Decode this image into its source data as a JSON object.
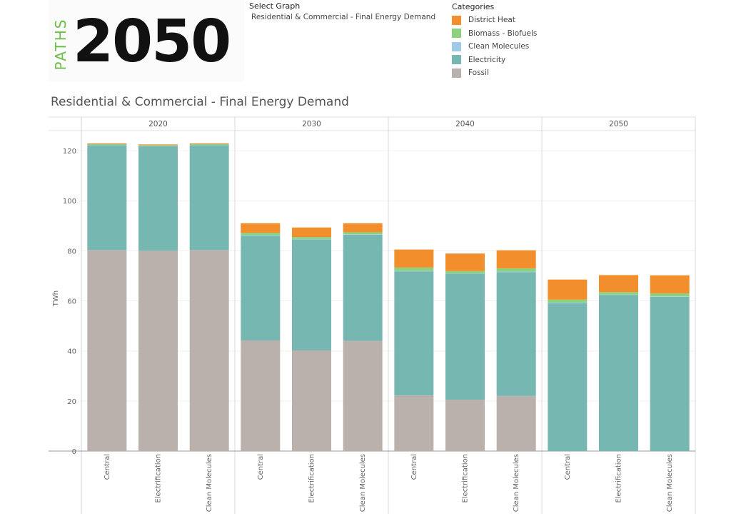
{
  "logo": {
    "small_text": "PATHS",
    "big_text": "2050"
  },
  "select_graph": {
    "label": "Select Graph",
    "value": "Residential & Commercial - Final Energy Demand"
  },
  "legend": {
    "title": "Categories",
    "items": [
      {
        "name": "District Heat",
        "color": "#f28e2b"
      },
      {
        "name": "Biomass - Biofuels",
        "color": "#8cd17d"
      },
      {
        "name": "Clean Molecules",
        "color": "#a0cbe8"
      },
      {
        "name": "Electricity",
        "color": "#76b7b2"
      },
      {
        "name": "Fossil",
        "color": "#bab0ac"
      }
    ]
  },
  "chart_data": {
    "type": "bar",
    "stacked": true,
    "title": "Residential & Commercial - Final Energy Demand",
    "ylabel": "TWh",
    "ylim": [
      0,
      128
    ],
    "yticks": [
      0,
      20,
      40,
      60,
      80,
      100,
      120
    ],
    "panels": [
      "2020",
      "2030",
      "2040",
      "2050"
    ],
    "categories": [
      "Central",
      "Electrification",
      "Clean Molecules"
    ],
    "series_order": [
      "Fossil",
      "Electricity",
      "Clean Molecules",
      "Biomass - Biofuels",
      "District Heat"
    ],
    "values": {
      "2020": {
        "Central": {
          "Fossil": 80.3,
          "Electricity": 41.9,
          "Clean Molecules": 0.1,
          "Biomass - Biofuels": 0.3,
          "District Heat": 0.3
        },
        "Electrification": {
          "Fossil": 80.0,
          "Electricity": 41.8,
          "Clean Molecules": 0.1,
          "Biomass - Biofuels": 0.3,
          "District Heat": 0.3
        },
        "Clean Molecules": {
          "Fossil": 80.3,
          "Electricity": 41.9,
          "Clean Molecules": 0.1,
          "Biomass - Biofuels": 0.3,
          "District Heat": 0.3
        }
      },
      "2030": {
        "Central": {
          "Fossil": 44.2,
          "Electricity": 41.8,
          "Clean Molecules": 0.2,
          "Biomass - Biofuels": 1.0,
          "District Heat": 3.8
        },
        "Electrification": {
          "Fossil": 40.2,
          "Electricity": 44.3,
          "Clean Molecules": 0.2,
          "Biomass - Biofuels": 0.8,
          "District Heat": 3.8
        },
        "Clean Molecules": {
          "Fossil": 44.0,
          "Electricity": 42.4,
          "Clean Molecules": 0.2,
          "Biomass - Biofuels": 0.8,
          "District Heat": 3.6
        }
      },
      "2040": {
        "Central": {
          "Fossil": 22.2,
          "Electricity": 49.6,
          "Clean Molecules": 0.2,
          "Biomass - Biofuels": 1.3,
          "District Heat": 7.2
        },
        "Electrification": {
          "Fossil": 20.5,
          "Electricity": 50.4,
          "Clean Molecules": 0.1,
          "Biomass - Biofuels": 0.9,
          "District Heat": 7.0
        },
        "Clean Molecules": {
          "Fossil": 22.0,
          "Electricity": 49.5,
          "Clean Molecules": 0.2,
          "Biomass - Biofuels": 1.3,
          "District Heat": 7.2
        }
      },
      "2050": {
        "Central": {
          "Fossil": 0,
          "Electricity": 59.0,
          "Clean Molecules": 0.3,
          "Biomass - Biofuels": 1.2,
          "District Heat": 8.0
        },
        "Electrification": {
          "Fossil": 0,
          "Electricity": 62.4,
          "Clean Molecules": 0.1,
          "Biomass - Biofuels": 1.0,
          "District Heat": 6.8
        },
        "Clean Molecules": {
          "Fossil": 0,
          "Electricity": 61.6,
          "Clean Molecules": 0.2,
          "Biomass - Biofuels": 1.2,
          "District Heat": 7.2
        }
      }
    },
    "grid": true
  }
}
